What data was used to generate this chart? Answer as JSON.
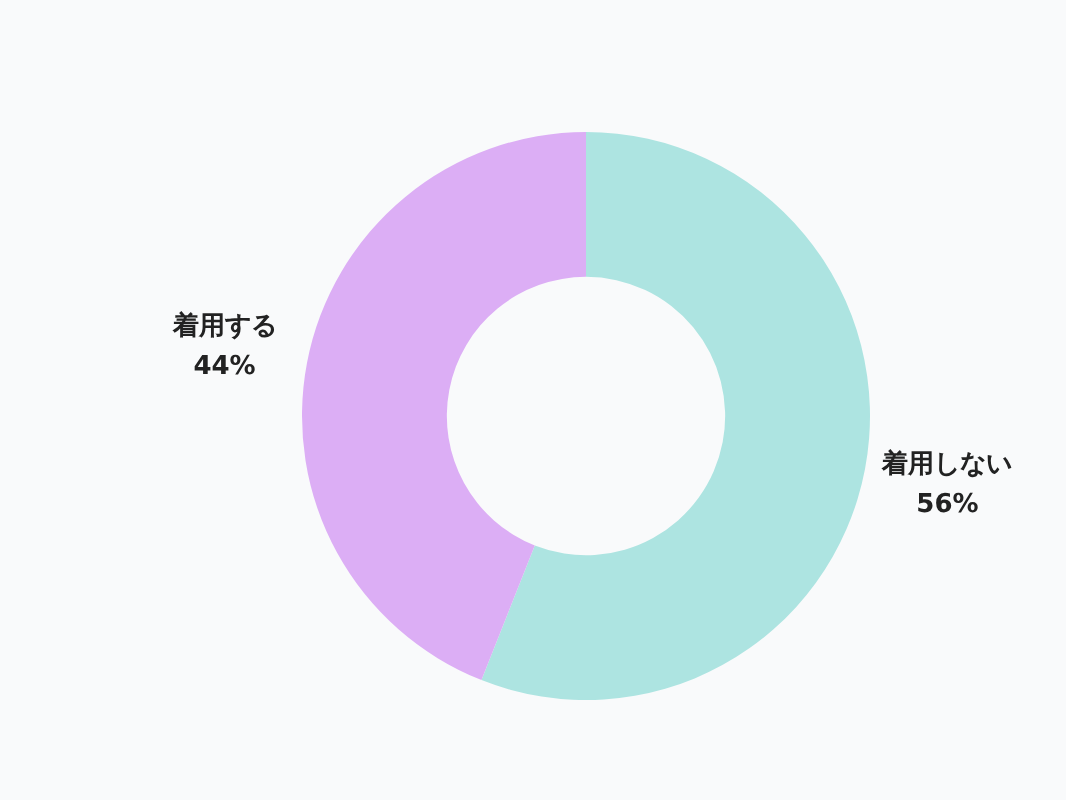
{
  "chart_data": {
    "type": "donut",
    "categories": [
      "着用しない",
      "着用する"
    ],
    "values": [
      56,
      44
    ],
    "value_labels": [
      "56%",
      "44%"
    ],
    "colors": [
      "#ade4e1",
      "#dcaef5"
    ],
    "legend": false
  }
}
